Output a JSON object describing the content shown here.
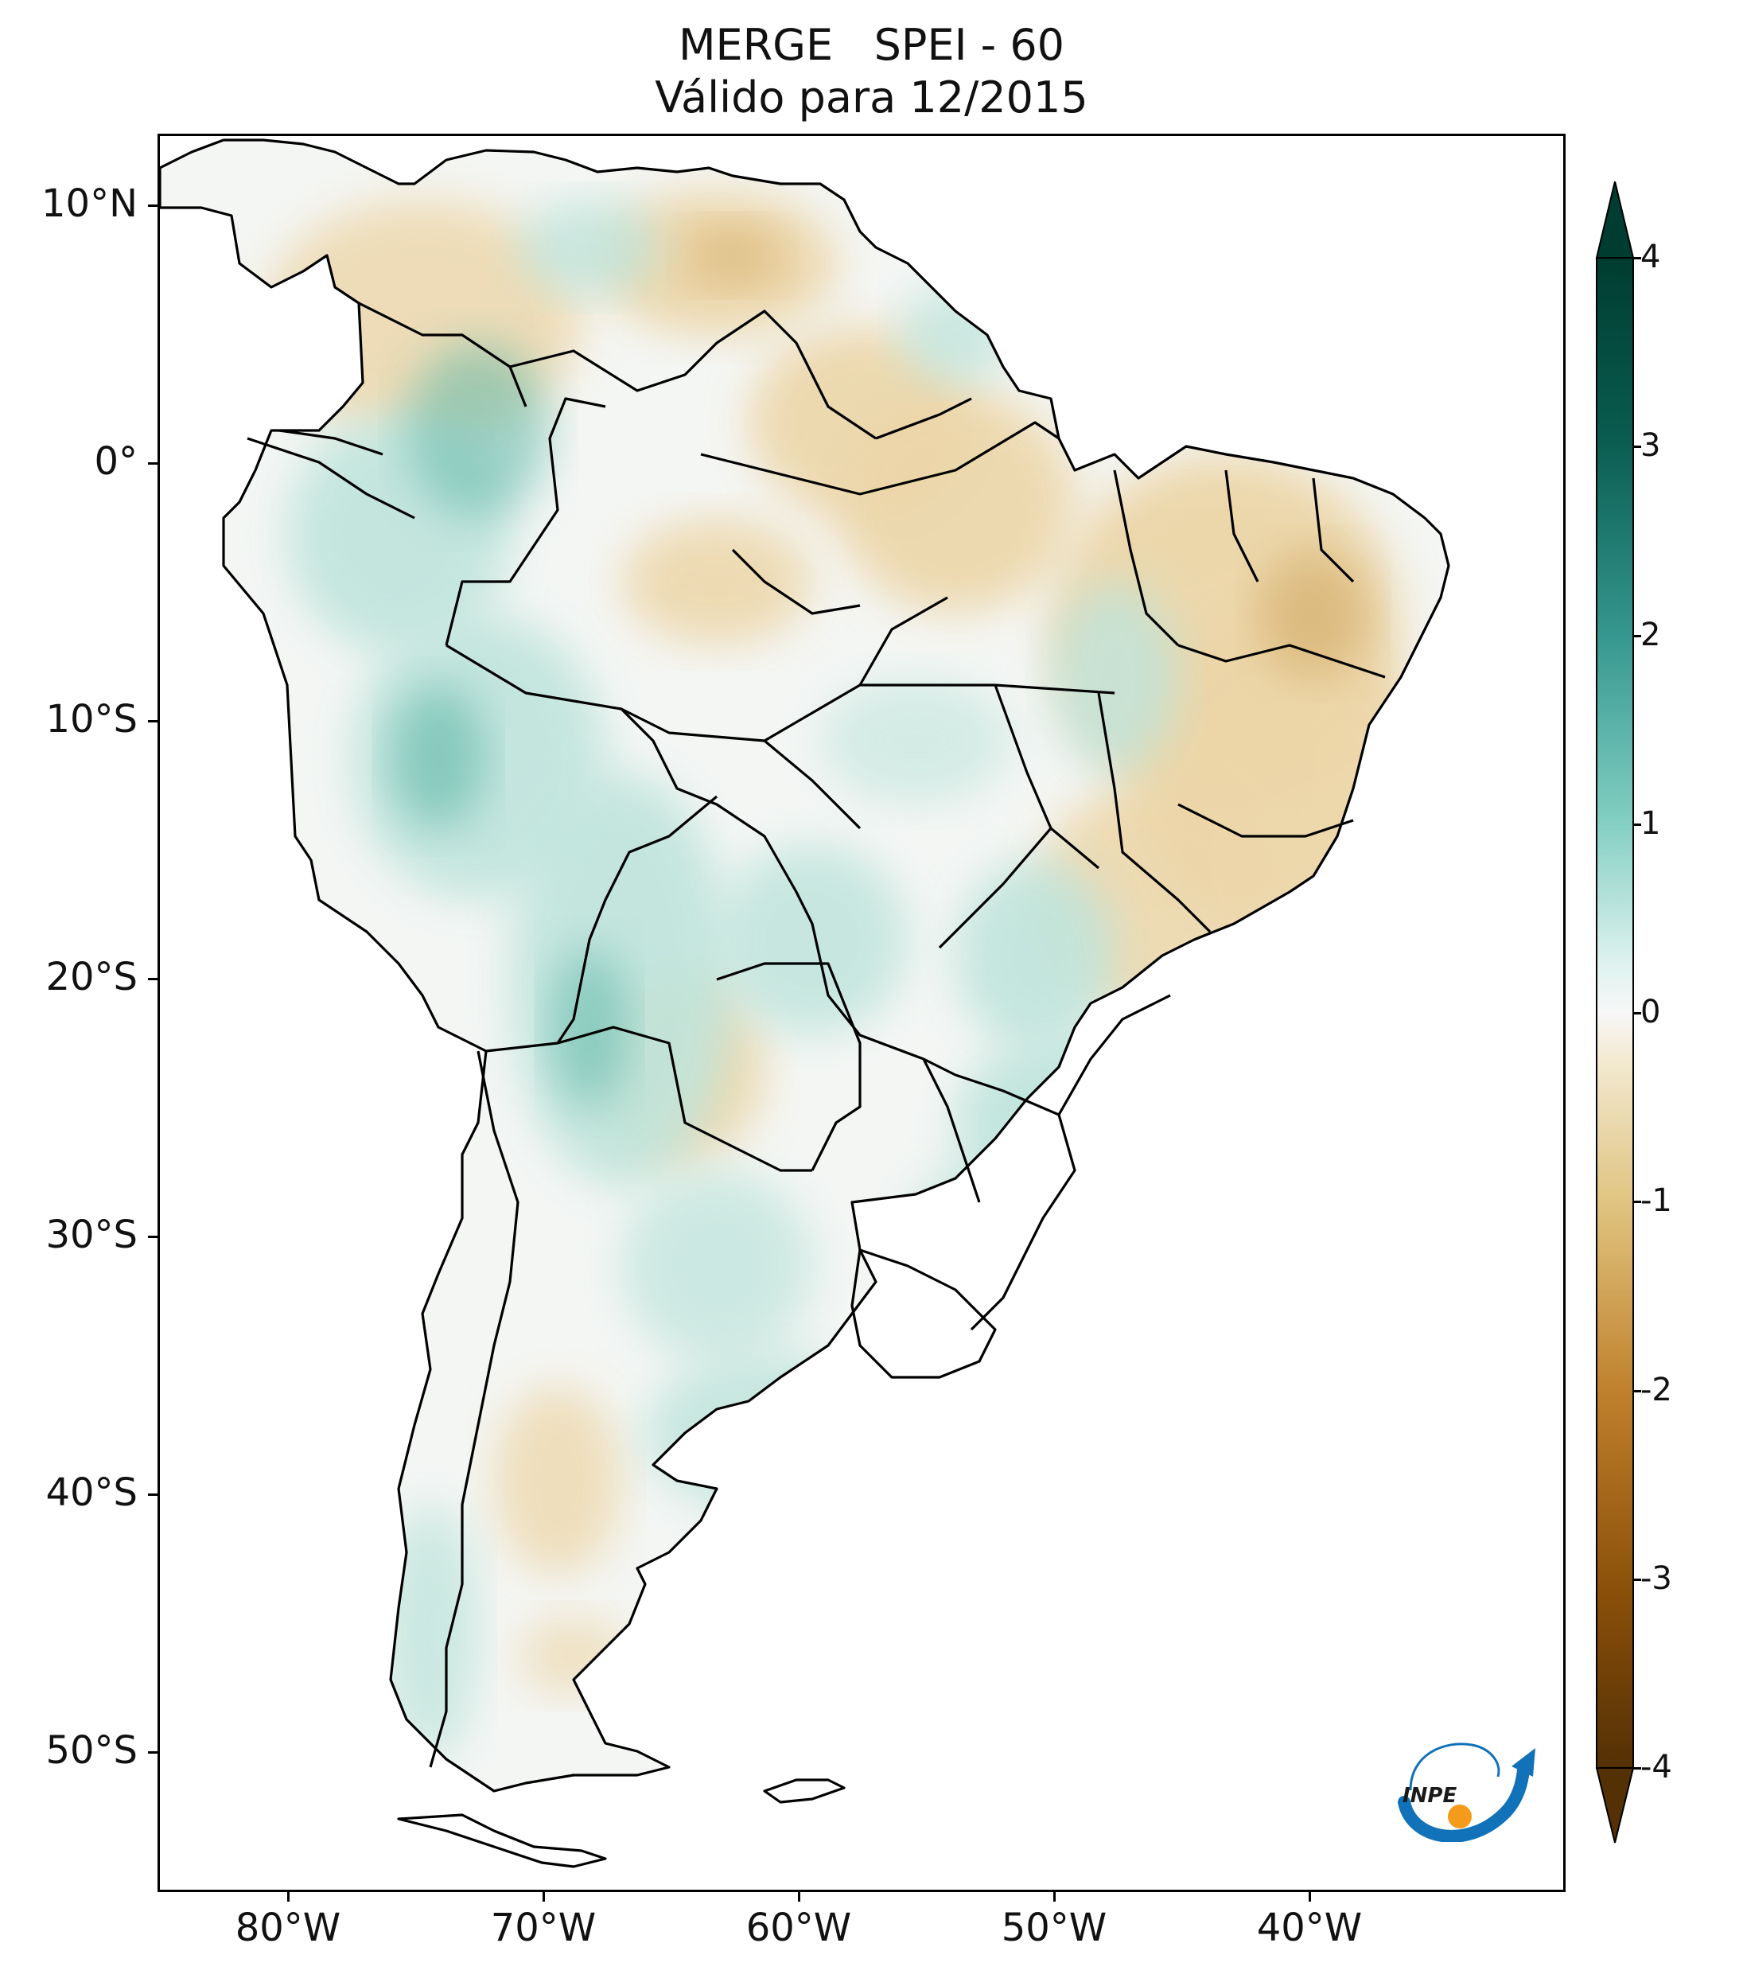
{
  "title": {
    "line1": "MERGE   SPEI - 60",
    "line2": "Válido para 12/2015"
  },
  "map": {
    "lat_labels": [
      "10°N",
      "0°",
      "10°S",
      "20°S",
      "30°S",
      "40°S",
      "50°S"
    ],
    "lon_labels": [
      "80°W",
      "70°W",
      "60°W",
      "50°W",
      "40°W"
    ],
    "lat_extent": [
      -56,
      13
    ],
    "lon_extent": [
      -85,
      -30
    ],
    "colors": {
      "dry_strong": "#5a3208",
      "dry": "#c99a4e",
      "dry_light": "#ecd6a8",
      "neutral": "#f6f6f4",
      "wet_light": "#bfe4dc",
      "wet": "#5fb7a8",
      "wet_strong": "#0b4c40",
      "borders": "#000000"
    }
  },
  "colorbar": {
    "tick_labels": [
      "4",
      "3",
      "2",
      "1",
      "0",
      "-1",
      "-2",
      "-3",
      "-4"
    ],
    "range": [
      -4,
      4
    ],
    "extend": "both",
    "colormap": "BrBG"
  },
  "logo": {
    "text": "INPE",
    "colors": {
      "arc": "#1172b9",
      "dot": "#f59b1c"
    }
  }
}
